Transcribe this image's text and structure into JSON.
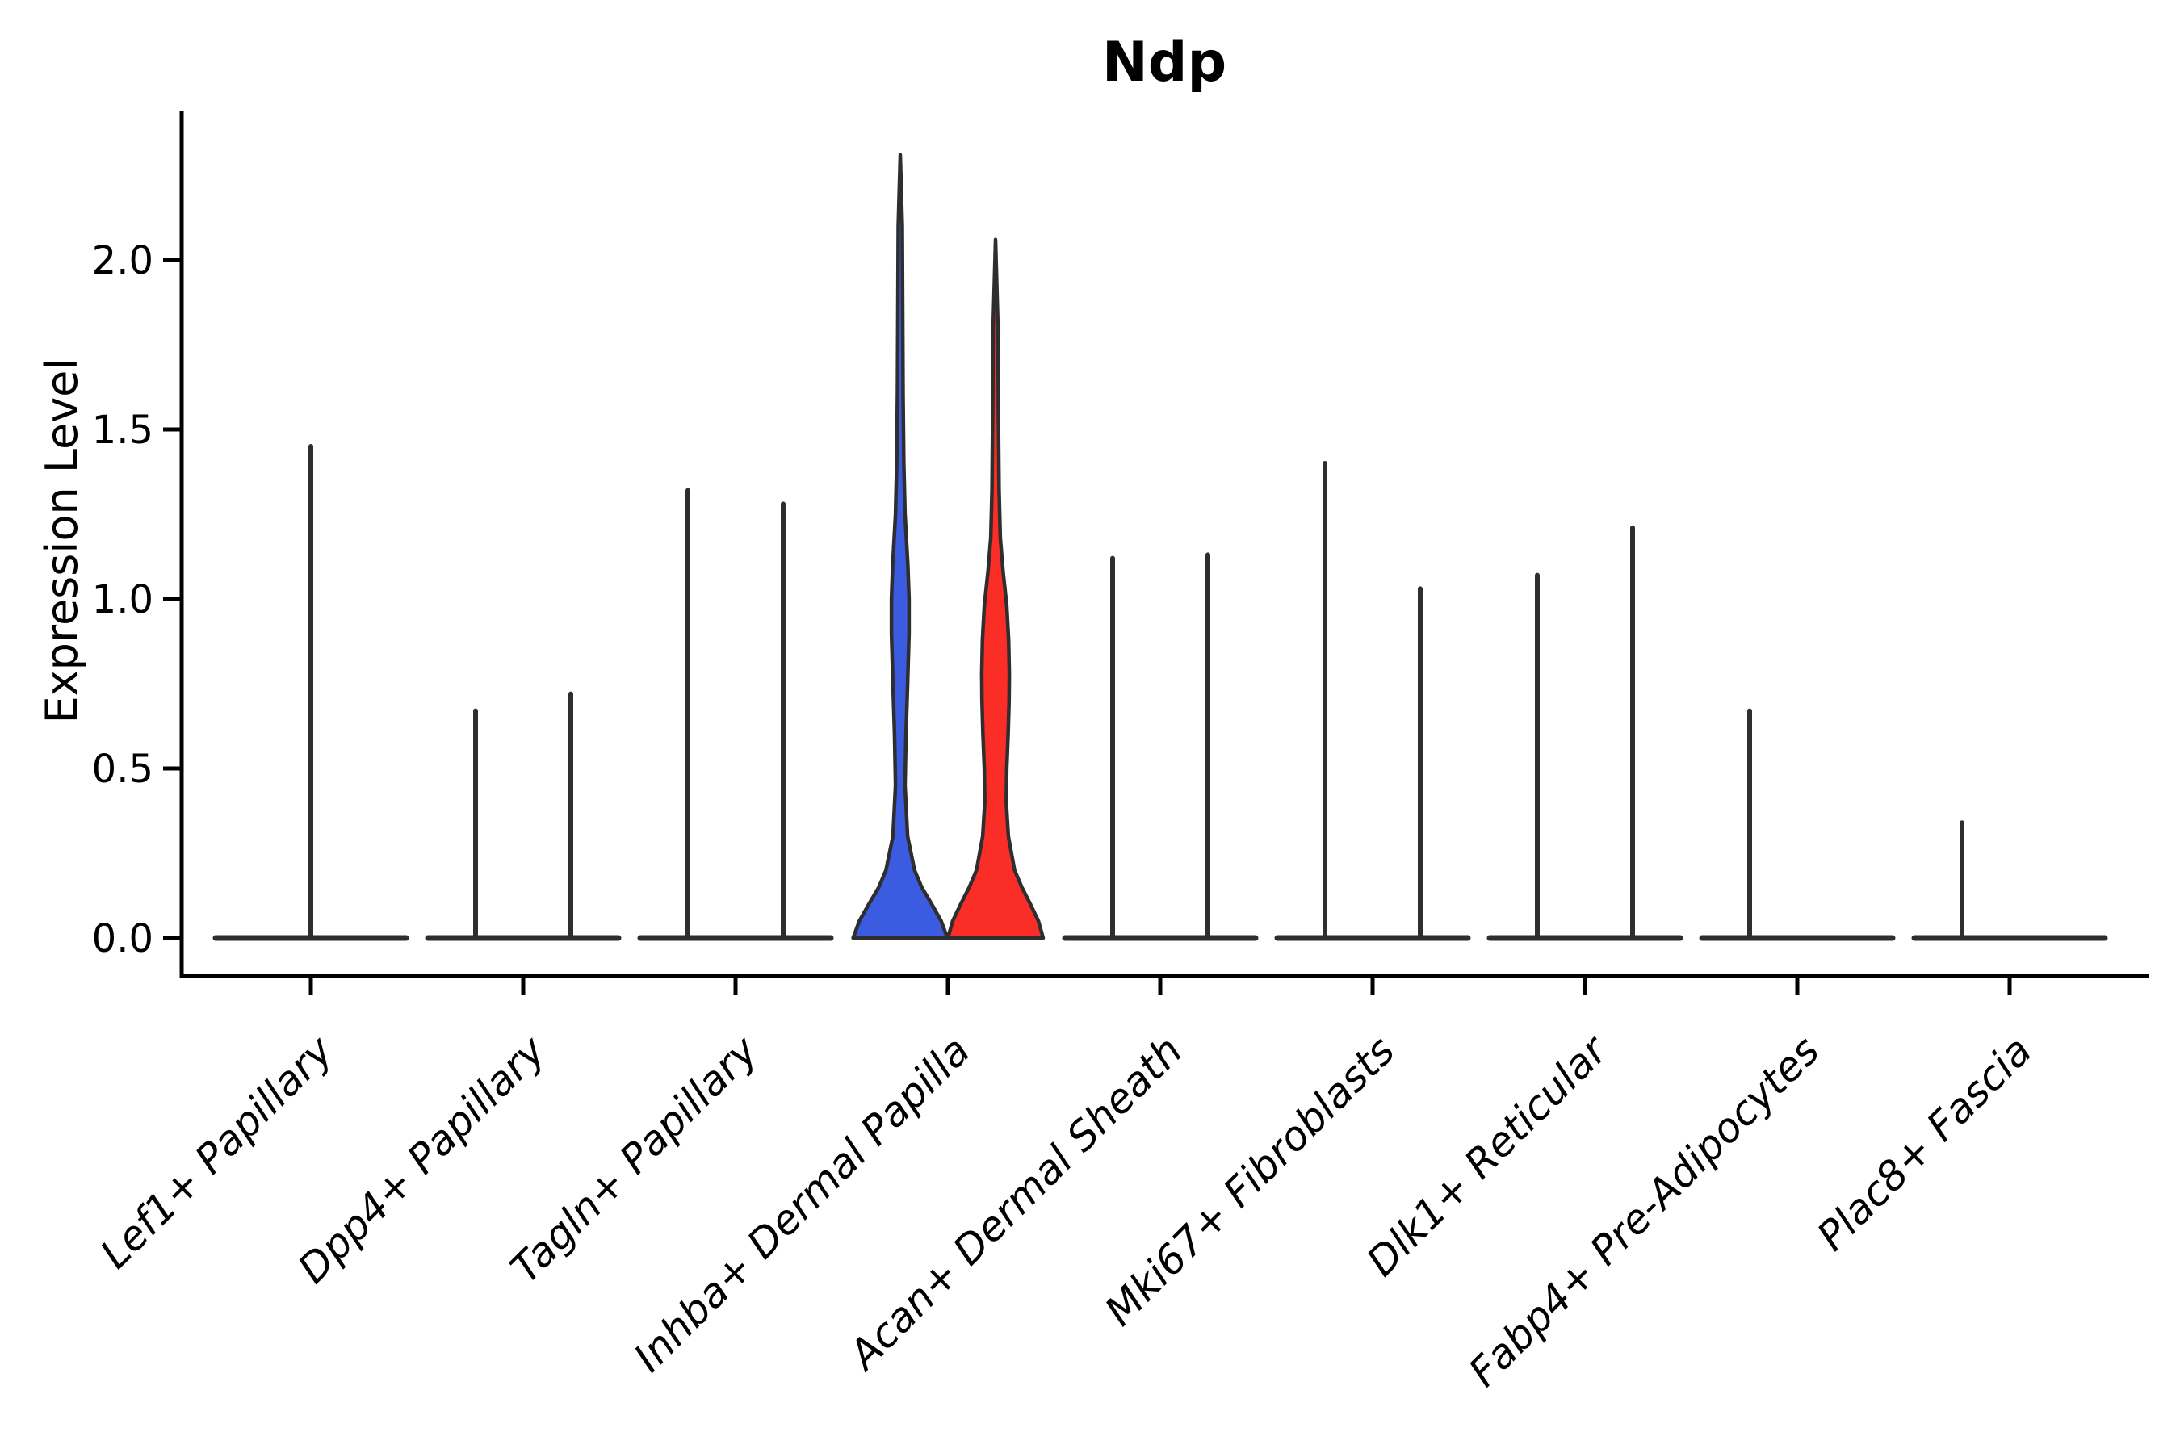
{
  "title": "Ndp",
  "y_axis": {
    "label": "Expression Level",
    "tick_labels": [
      "0.0",
      "0.5",
      "1.0",
      "1.5",
      "2.0"
    ],
    "tick_values": [
      0.0,
      0.5,
      1.0,
      1.5,
      2.0
    ]
  },
  "colors": {
    "split_blue": "#3B5BE0",
    "split_red": "#FB2D27",
    "line": "#2e2e2e",
    "axis": "#000000",
    "background": "#ffffff"
  },
  "chart_data": {
    "type": "violin",
    "title": "Ndp",
    "xlabel": "",
    "ylabel": "Expression Level",
    "ylim": [
      0,
      2.43
    ],
    "yticks": [
      0.0,
      0.5,
      1.0,
      1.5,
      2.0
    ],
    "grid": false,
    "legend": "none",
    "categories": [
      "Lef1+ Papillary",
      "Dpp4+ Papillary",
      "Tagln+ Papillary",
      "Inhba+ Dermal Papilla",
      "Acan+ Dermal Sheath",
      "Mki67+ Fibroblasts",
      "Dlk1+ Reticular",
      "Fabp4+ Pre-Adipocytes",
      "Plac8+ Fascia"
    ],
    "violins": [
      {
        "category": "Lef1+ Papillary",
        "parts": [
          {
            "pos": "center",
            "max": 1.45,
            "color": null
          }
        ]
      },
      {
        "category": "Dpp4+ Papillary",
        "parts": [
          {
            "pos": "left",
            "max": 0.67,
            "color": null
          },
          {
            "pos": "right",
            "max": 0.72,
            "color": null
          }
        ]
      },
      {
        "category": "Tagln+ Papillary",
        "parts": [
          {
            "pos": "left",
            "max": 1.32,
            "color": null
          },
          {
            "pos": "right",
            "max": 1.28,
            "color": null
          }
        ]
      },
      {
        "category": "Inhba+ Dermal Papilla",
        "parts": [
          {
            "pos": "left",
            "max": 2.31,
            "color": "split_blue",
            "profile": [
              [
                0,
                0.99
              ],
              [
                0.05,
                0.86
              ],
              [
                0.1,
                0.66
              ],
              [
                0.15,
                0.45
              ],
              [
                0.2,
                0.3
              ],
              [
                0.3,
                0.155
              ],
              [
                0.45,
                0.1
              ],
              [
                0.6,
                0.12
              ],
              [
                0.75,
                0.155
              ],
              [
                0.9,
                0.185
              ],
              [
                1.0,
                0.185
              ],
              [
                1.1,
                0.16
              ],
              [
                1.25,
                0.1
              ],
              [
                1.4,
                0.075
              ],
              [
                1.6,
                0.06
              ],
              [
                1.85,
                0.05
              ],
              [
                2.1,
                0.042
              ],
              [
                2.31,
                0.0
              ]
            ]
          },
          {
            "pos": "right",
            "max": 2.06,
            "color": "split_red",
            "profile": [
              [
                0,
                1.0
              ],
              [
                0.05,
                0.9
              ],
              [
                0.1,
                0.73
              ],
              [
                0.15,
                0.55
              ],
              [
                0.2,
                0.4
              ],
              [
                0.3,
                0.27
              ],
              [
                0.4,
                0.225
              ],
              [
                0.5,
                0.235
              ],
              [
                0.6,
                0.265
              ],
              [
                0.7,
                0.285
              ],
              [
                0.78,
                0.29
              ],
              [
                0.88,
                0.275
              ],
              [
                0.98,
                0.235
              ],
              [
                1.08,
                0.16
              ],
              [
                1.18,
                0.1
              ],
              [
                1.32,
                0.075
              ],
              [
                1.55,
                0.06
              ],
              [
                1.8,
                0.05
              ],
              [
                2.06,
                0.0
              ]
            ]
          }
        ]
      },
      {
        "category": "Acan+ Dermal Sheath",
        "parts": [
          {
            "pos": "left",
            "max": 1.12,
            "color": null
          },
          {
            "pos": "right",
            "max": 1.13,
            "color": null
          }
        ]
      },
      {
        "category": "Mki67+ Fibroblasts",
        "parts": [
          {
            "pos": "left",
            "max": 1.4,
            "color": null
          },
          {
            "pos": "right",
            "max": 1.03,
            "color": null
          }
        ]
      },
      {
        "category": "Dlk1+ Reticular",
        "parts": [
          {
            "pos": "left",
            "max": 1.07,
            "color": null
          },
          {
            "pos": "right",
            "max": 1.21,
            "color": null
          }
        ]
      },
      {
        "category": "Fabp4+ Pre-Adipocytes",
        "parts": [
          {
            "pos": "left",
            "max": 0.67,
            "color": null
          },
          {
            "pos": "right",
            "max": 0.0,
            "color": null
          }
        ]
      },
      {
        "category": "Plac8+ Fascia",
        "parts": [
          {
            "pos": "left",
            "max": 0.34,
            "color": null
          },
          {
            "pos": "right",
            "max": 0.0,
            "color": null
          }
        ]
      }
    ]
  }
}
